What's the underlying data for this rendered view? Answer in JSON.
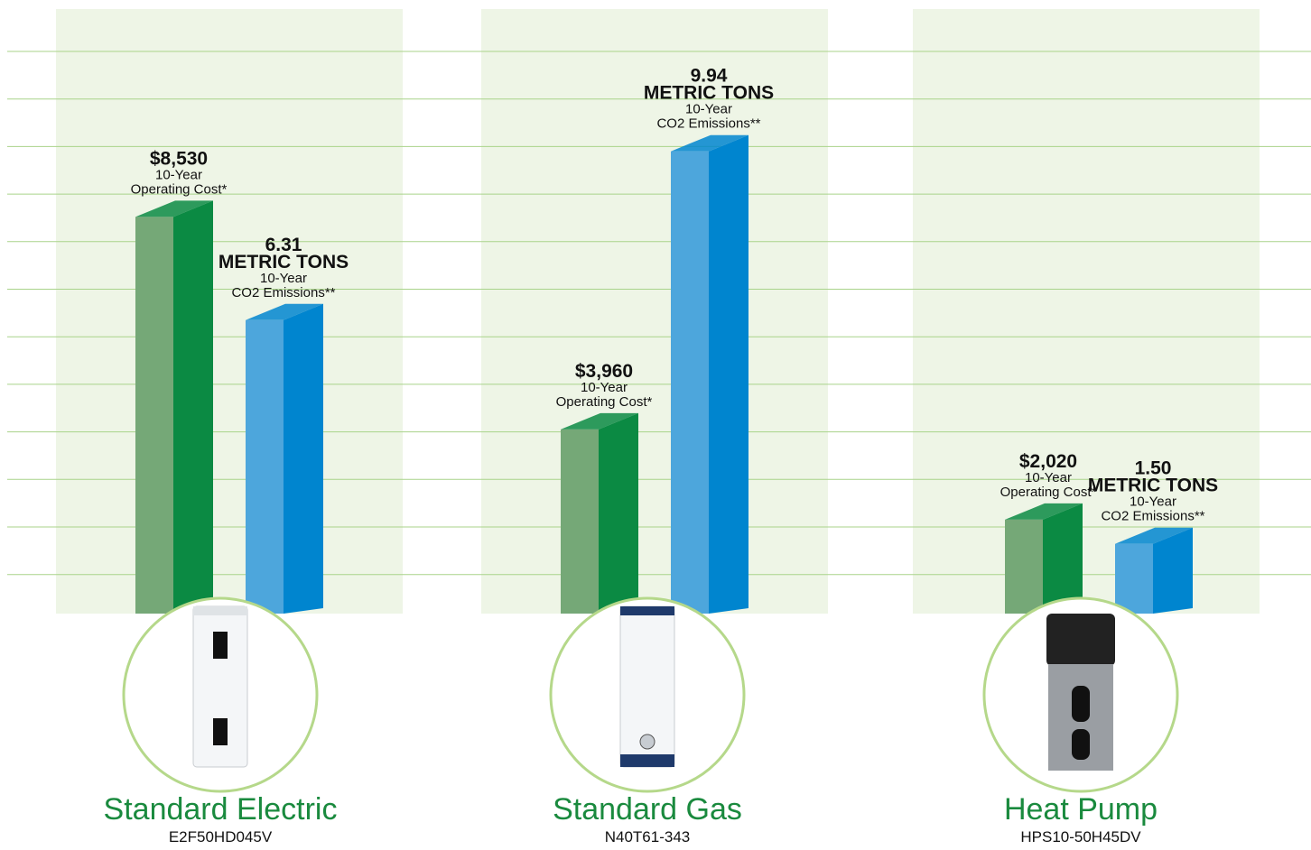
{
  "chart_data": {
    "type": "bar",
    "categories": [
      "Standard Electric",
      "Standard Gas",
      "Heat Pump"
    ],
    "models": [
      "E2F50HD045V",
      "N40T61-343",
      "HPS10-50H45DV"
    ],
    "series": [
      {
        "label_lines": [
          "10-Year",
          "Operating Cost*"
        ],
        "color": "#75a877",
        "side_color": "#0b8a43",
        "values": [
          8530,
          3960,
          2020
        ],
        "value_labels": [
          "$8,530",
          "$3,960",
          "$2,020"
        ]
      },
      {
        "unit": "METRIC TONS",
        "label_lines": [
          "10-Year",
          "CO2 Emissions**"
        ],
        "color": "#4da6dc",
        "side_color": "#0085cf",
        "values": [
          6.31,
          9.94,
          1.5
        ],
        "value_labels": [
          "6.31",
          "9.94",
          "1.50"
        ],
        "axis": "y2"
      }
    ],
    "ylim": [
      0,
      13000
    ],
    "y2lim": [
      0,
      13
    ],
    "grid": true
  }
}
